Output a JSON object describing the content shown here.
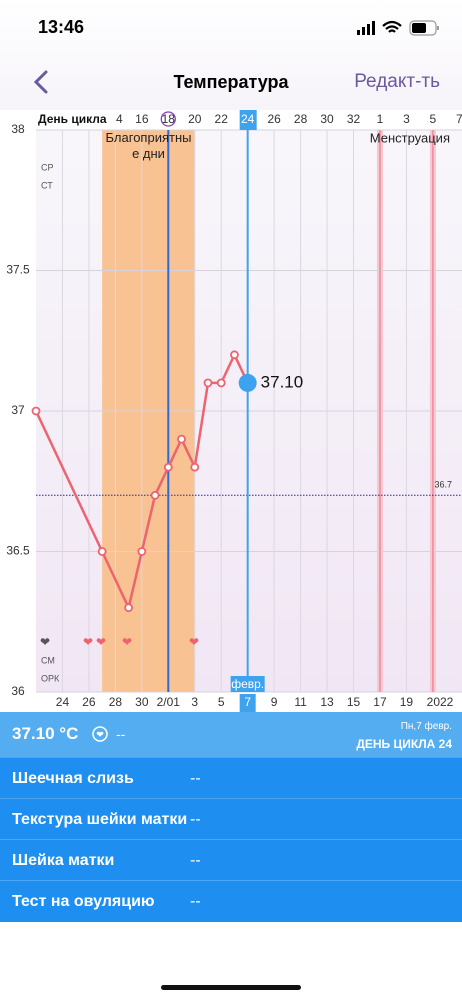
{
  "status_bar": {
    "time": "13:46"
  },
  "nav": {
    "title": "Температура",
    "action": "Редакт-ть"
  },
  "chart_data": {
    "type": "line",
    "x_axis_top_label": "День цикла",
    "x": [
      22,
      27,
      29,
      30,
      31,
      32,
      33,
      34,
      35,
      36,
      37,
      38
    ],
    "values": [
      37.0,
      36.5,
      36.3,
      36.5,
      36.7,
      36.8,
      36.9,
      36.8,
      37.1,
      37.1,
      37.2,
      37.1
    ],
    "value_labels": [
      null,
      null,
      null,
      null,
      null,
      null,
      null,
      null,
      null,
      null,
      null,
      "37.10"
    ],
    "color": "#ec6470",
    "xlim": [
      22,
      54.2
    ],
    "ylim": [
      36,
      38
    ],
    "yticks": [
      36,
      36.5,
      37,
      37.5,
      38
    ],
    "xticks": [
      24,
      26,
      28,
      30,
      {
        "value": 32,
        "label": "2/01"
      },
      {
        "value": 34,
        "label": "3"
      },
      {
        "value": 36,
        "label": "5"
      },
      {
        "value": 38,
        "label": "7"
      },
      {
        "value": 40,
        "label": "9"
      },
      {
        "value": 42,
        "label": "11"
      },
      {
        "value": 44,
        "label": "13"
      },
      {
        "value": 46,
        "label": "15"
      },
      {
        "value": 48,
        "label": "17"
      },
      {
        "value": 50,
        "label": "19"
      }
    ],
    "x2ticks": [
      {
        "value": 28,
        "label": "4"
      },
      {
        "value": 30,
        "label": "16"
      },
      {
        "value": 32,
        "label": "18"
      },
      {
        "value": 34,
        "label": "20"
      },
      {
        "value": 36,
        "label": "22"
      },
      {
        "value": 38,
        "label": "24"
      },
      {
        "value": 40,
        "label": "26"
      },
      {
        "value": 42,
        "label": "28"
      },
      {
        "value": 44,
        "label": "30"
      },
      {
        "value": 46,
        "label": "32"
      },
      {
        "value": 48,
        "label": "1"
      },
      {
        "value": 50,
        "label": "3"
      },
      {
        "value": 52,
        "label": "5"
      },
      {
        "value": 54,
        "label": "7"
      }
    ],
    "year_label": "2022",
    "month_label": "февр.",
    "selected_x": 38,
    "ovulation_x": 32,
    "fertile_window": [
      27,
      34
    ],
    "fertile_label": "Благоприятные дни",
    "menstruation_x": [
      48,
      52
    ],
    "menstruation_label": "Менструация",
    "coverline": 36.7,
    "side_labels": [
      "СР",
      "СТ",
      "СМ",
      "ОРК"
    ],
    "grid": true
  },
  "summary": {
    "temperature": "37.10 °C",
    "note": "--",
    "date": "Пн,7 февр.",
    "cycle_day": "ДЕНЬ ЦИКЛА 24"
  },
  "rows": [
    {
      "label": "Шеечная слизь",
      "value": "--"
    },
    {
      "label": "Текстура шейки матки",
      "value": "--"
    },
    {
      "label": "Шейка матки",
      "value": "--"
    },
    {
      "label": "Тест на овуляцию",
      "value": "--"
    }
  ]
}
